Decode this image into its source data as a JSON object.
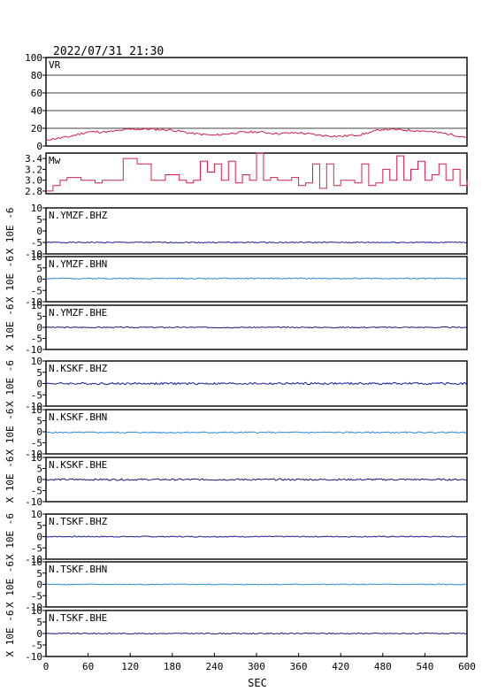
{
  "title": "2022/07/31 21:30",
  "xlabel": "SEC",
  "ylabel_seis": "X 10E -6",
  "chart_data": [
    {
      "type": "line",
      "label": "VR",
      "xlim": [
        0,
        600
      ],
      "ylim": [
        0,
        100
      ],
      "yticks": [
        "100",
        "80",
        "60",
        "40",
        "20",
        "0"
      ],
      "grid": true,
      "color": "#d6204a",
      "baseline": 15,
      "amp": 4,
      "x": [
        0,
        30,
        60,
        90,
        120,
        150,
        180,
        210,
        240,
        270,
        300,
        330,
        360,
        390,
        420,
        450,
        480,
        510,
        540,
        570,
        600
      ],
      "y": [
        7,
        10,
        16,
        16,
        19,
        19,
        18,
        14,
        12,
        15,
        16,
        14,
        15,
        12,
        11,
        13,
        19,
        18,
        17,
        14,
        10
      ]
    },
    {
      "type": "line",
      "label": "Mw",
      "xlim": [
        0,
        600
      ],
      "ylim": [
        2.75,
        3.5
      ],
      "yticks": [
        "3.4",
        "3.2",
        "3.0",
        "2.8"
      ],
      "grid": false,
      "color": "#d6204a",
      "x": [
        0,
        10,
        20,
        30,
        50,
        70,
        80,
        100,
        110,
        130,
        150,
        170,
        190,
        200,
        210,
        220,
        230,
        240,
        250,
        260,
        270,
        280,
        290,
        300,
        310,
        320,
        330,
        340,
        350,
        360,
        370,
        380,
        390,
        400,
        410,
        420,
        440,
        450,
        460,
        470,
        480,
        490,
        500,
        510,
        520,
        530,
        540,
        550,
        560,
        570,
        580,
        590,
        600
      ],
      "y": [
        2.8,
        2.9,
        3.0,
        3.05,
        3.0,
        2.95,
        3.0,
        3.0,
        3.4,
        3.3,
        3.0,
        3.1,
        3.0,
        2.95,
        3.0,
        3.35,
        3.15,
        3.3,
        3.0,
        3.35,
        2.95,
        3.1,
        3.0,
        3.5,
        3.0,
        3.05,
        3.0,
        3.0,
        3.05,
        2.9,
        2.95,
        3.3,
        2.85,
        3.3,
        2.9,
        3.0,
        2.95,
        3.3,
        2.9,
        2.95,
        3.2,
        3.0,
        3.45,
        3.0,
        3.2,
        3.35,
        3.0,
        3.1,
        3.3,
        3.0,
        3.2,
        2.9,
        3.0
      ]
    },
    {
      "type": "line",
      "label": "N.YMZF.BHZ",
      "xlim": [
        0,
        600
      ],
      "ylim": [
        -10,
        10
      ],
      "yticks": [
        "10",
        "5",
        "0",
        "-5",
        "-10"
      ],
      "grid": false,
      "color": "#1a1aa0",
      "baseline": -5,
      "amp": 0.25,
      "seed": 1
    },
    {
      "type": "line",
      "label": "N.YMZF.BHN",
      "xlim": [
        0,
        600
      ],
      "ylim": [
        -10,
        10
      ],
      "yticks": [
        "10",
        "5",
        "0",
        "-5",
        "-10"
      ],
      "grid": false,
      "color": "#2a8ad8",
      "baseline": 0.3,
      "amp": 0.25,
      "seed": 2
    },
    {
      "type": "line",
      "label": "N.YMZF.BHE",
      "xlim": [
        0,
        600
      ],
      "ylim": [
        -10,
        10
      ],
      "yticks": [
        "10",
        "5",
        "0",
        "-5",
        "-10"
      ],
      "grid": false,
      "color": "#1a1a80",
      "baseline": 0,
      "amp": 0.25,
      "seed": 3
    },
    {
      "type": "line",
      "label": "N.KSKF.BHZ",
      "xlim": [
        0,
        600
      ],
      "ylim": [
        -10,
        10
      ],
      "yticks": [
        "10",
        "5",
        "0",
        "-5",
        "-10"
      ],
      "grid": false,
      "color": "#1a1aa0",
      "baseline": 0,
      "amp": 0.45,
      "seed": 4
    },
    {
      "type": "line",
      "label": "N.KSKF.BHN",
      "xlim": [
        0,
        600
      ],
      "ylim": [
        -10,
        10
      ],
      "yticks": [
        "10",
        "5",
        "0",
        "-5",
        "-10"
      ],
      "grid": false,
      "color": "#2a8ad8",
      "baseline": -0.3,
      "amp": 0.3,
      "seed": 5
    },
    {
      "type": "line",
      "label": "N.KSKF.BHE",
      "xlim": [
        0,
        600
      ],
      "ylim": [
        -10,
        10
      ],
      "yticks": [
        "10",
        "5",
        "0",
        "-5",
        "-10"
      ],
      "grid": false,
      "color": "#1a1a80",
      "baseline": 0,
      "amp": 0.4,
      "seed": 6
    },
    {
      "type": "line",
      "label": "N.TSKF.BHZ",
      "xlim": [
        0,
        600
      ],
      "ylim": [
        -10,
        10
      ],
      "yticks": [
        "10",
        "5",
        "0",
        "-5",
        "-10"
      ],
      "grid": false,
      "color": "#1a1aa0",
      "baseline": 0,
      "amp": 0.25,
      "seed": 7
    },
    {
      "type": "line",
      "label": "N.TSKF.BHN",
      "xlim": [
        0,
        600
      ],
      "ylim": [
        -10,
        10
      ],
      "yticks": [
        "10",
        "5",
        "0",
        "-5",
        "-10"
      ],
      "grid": false,
      "color": "#2a8ad8",
      "baseline": 0,
      "amp": 0.2,
      "seed": 8
    },
    {
      "type": "line",
      "label": "N.TSKF.BHE",
      "xlim": [
        0,
        600
      ],
      "ylim": [
        -10,
        10
      ],
      "yticks": [
        "10",
        "5",
        "0",
        "-5",
        "-10"
      ],
      "grid": false,
      "color": "#1a1a80",
      "baseline": 0,
      "amp": 0.25,
      "seed": 9
    }
  ],
  "xticks": [
    "0",
    "60",
    "120",
    "180",
    "240",
    "300",
    "360",
    "420",
    "480",
    "540",
    "600"
  ]
}
